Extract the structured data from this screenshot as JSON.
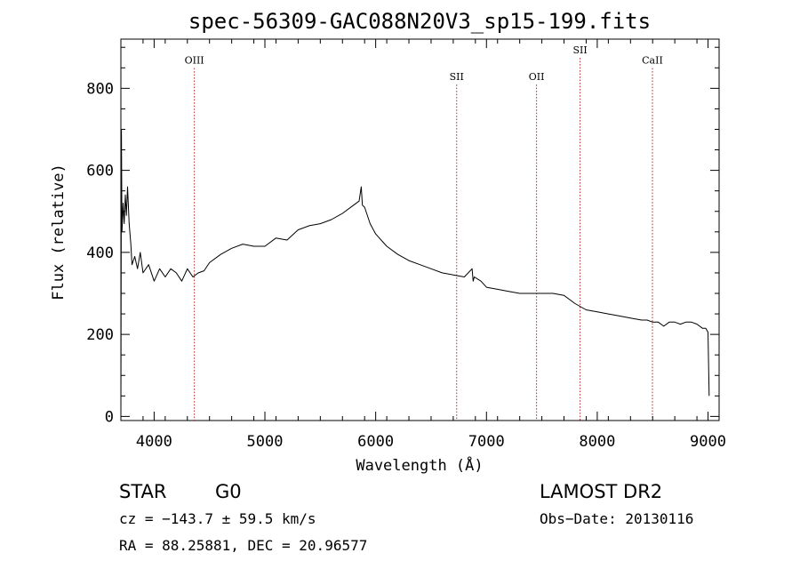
{
  "chart_data": {
    "type": "line",
    "title": "spec-56309-GAC088N20V3_sp15-199.fits",
    "xlabel": "Wavelength (Å)",
    "ylabel": "Flux (relative)",
    "xlim": [
      3700,
      9100
    ],
    "ylim": [
      -10,
      920
    ],
    "xticks": [
      4000,
      5000,
      6000,
      7000,
      8000,
      9000
    ],
    "yticks": [
      0,
      200,
      400,
      600,
      800
    ],
    "grid": false,
    "series": [
      {
        "x": [
          3700,
          3705,
          3710,
          3720,
          3730,
          3740,
          3750,
          3760,
          3775,
          3790,
          3800,
          3825,
          3850,
          3875,
          3900,
          3950,
          4000,
          4050,
          4100,
          4150,
          4200,
          4250,
          4300,
          4350,
          4400,
          4450,
          4500,
          4600,
          4700,
          4800,
          4900,
          5000,
          5100,
          5200,
          5300,
          5400,
          5500,
          5600,
          5700,
          5800,
          5850,
          5870,
          5880,
          5900,
          5950,
          6000,
          6100,
          6200,
          6300,
          6400,
          6500,
          6600,
          6700,
          6800,
          6870,
          6880,
          6890,
          6950,
          7000,
          7100,
          7200,
          7300,
          7400,
          7500,
          7600,
          7700,
          7800,
          7900,
          8000,
          8100,
          8200,
          8300,
          8400,
          8450,
          8500,
          8550,
          8600,
          8650,
          8700,
          8750,
          8800,
          8850,
          8900,
          8950,
          8980,
          9000,
          9010
        ],
        "y": [
          0,
          700,
          450,
          520,
          470,
          540,
          490,
          560,
          470,
          420,
          370,
          390,
          360,
          400,
          350,
          370,
          330,
          360,
          340,
          360,
          350,
          330,
          360,
          340,
          350,
          355,
          375,
          395,
          410,
          420,
          415,
          415,
          435,
          430,
          455,
          465,
          470,
          480,
          495,
          515,
          525,
          560,
          515,
          510,
          470,
          445,
          415,
          395,
          380,
          370,
          360,
          350,
          345,
          340,
          360,
          330,
          340,
          330,
          315,
          310,
          305,
          300,
          300,
          300,
          300,
          295,
          275,
          260,
          255,
          250,
          245,
          240,
          235,
          235,
          230,
          230,
          220,
          230,
          230,
          225,
          230,
          230,
          225,
          215,
          215,
          205,
          50
        ]
      }
    ],
    "annotations": [
      {
        "label": "OIII",
        "x": 4363,
        "label_y": 860
      },
      {
        "label": "SII",
        "x": 6731,
        "label_y": 820
      },
      {
        "label": "OII",
        "x": 7452,
        "label_y": 820
      },
      {
        "label": "SII",
        "x": 7845,
        "label_y": 885
      },
      {
        "label": "CaII",
        "x": 8498,
        "label_y": 860
      }
    ]
  },
  "info": {
    "object_type": "STAR",
    "subclass": "G0",
    "survey": "LAMOST DR2",
    "redshift_line": "cz = −143.7 ± 59.5 km/s",
    "obs_date_line": "Obs−Date: 20130116",
    "coords_line": "RA =  88.25881, DEC =  20.96577"
  },
  "colors": {
    "spectrum": "#000000",
    "line_marker": "#b22222",
    "axes": "#000000"
  }
}
